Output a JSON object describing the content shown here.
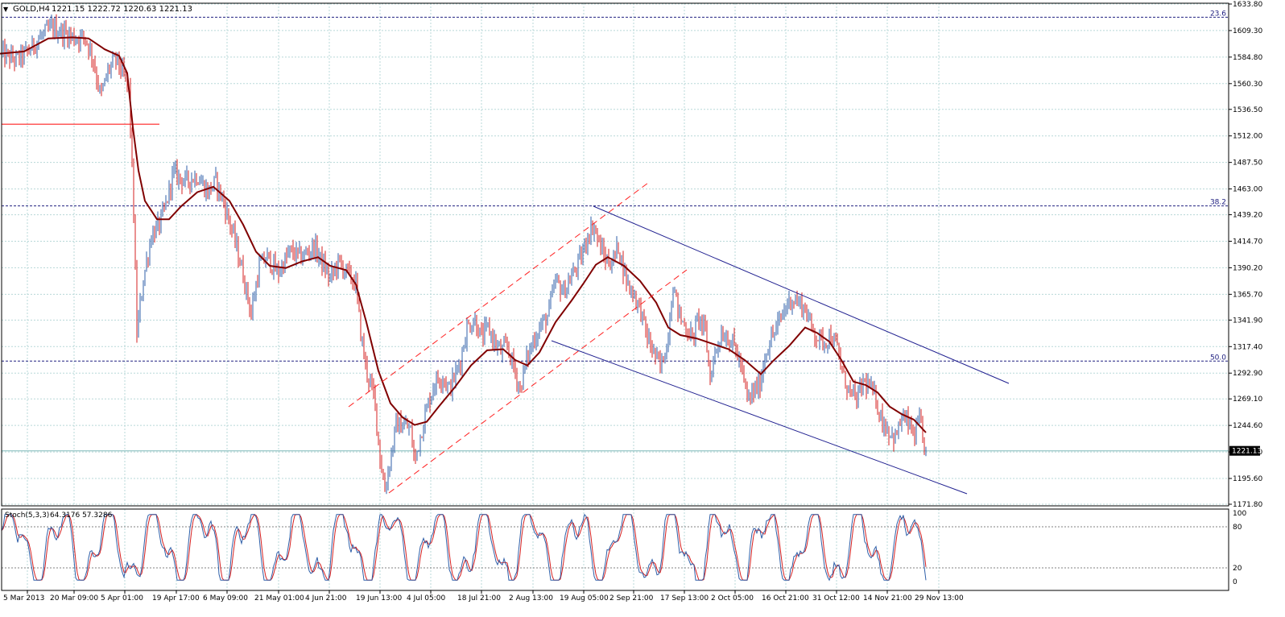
{
  "header": {
    "symbol_label": "GOLD,H4",
    "ohlc_text": "1221.15 1222.72 1220.63 1221.13"
  },
  "stoch_header": {
    "label": "Stoch(5,3,3)",
    "values_text": "64.3176 57.3286"
  },
  "chart_data": [
    {
      "type": "candlestick",
      "symbol": "GOLD",
      "timeframe": "H4",
      "last_price": 1221.13,
      "last_price_label": "1221.13",
      "ohlc": {
        "open": 1221.15,
        "high": 1222.72,
        "low": 1220.63,
        "close": 1221.13
      },
      "ylim": [
        1171.8,
        1633.8
      ],
      "y_ticks": [
        1633.8,
        1609.3,
        1584.8,
        1560.3,
        1536.5,
        1512.0,
        1487.5,
        1463.0,
        1439.2,
        1414.7,
        1390.2,
        1365.7,
        1341.9,
        1317.4,
        1292.9,
        1269.1,
        1244.6,
        1220.1,
        1195.6,
        1171.8
      ],
      "x_tick_labels": [
        "5 Mar 2013",
        "20 Mar 09:00",
        "5 Apr 01:00",
        "19 Apr 17:00",
        "6 May 09:00",
        "21 May 01:00",
        "4 Jun 21:00",
        "19 Jun 13:00",
        "4 Jul 05:00",
        "18 Jul 21:00",
        "2 Aug 13:00",
        "19 Aug 05:00",
        "2 Sep 21:00",
        "17 Sep 13:00",
        "2 Oct 05:00",
        "16 Oct 21:00",
        "31 Oct 12:00",
        "14 Nov 21:00",
        "29 Nov 13:00"
      ],
      "price_path": [
        [
          0,
          1588
        ],
        [
          20,
          1582
        ],
        [
          35,
          1590
        ],
        [
          50,
          1603
        ],
        [
          65,
          1612
        ],
        [
          80,
          1607
        ],
        [
          95,
          1602
        ],
        [
          105,
          1604
        ],
        [
          115,
          1585
        ],
        [
          125,
          1548
        ],
        [
          135,
          1574
        ],
        [
          145,
          1583
        ],
        [
          152,
          1570
        ],
        [
          160,
          1555
        ],
        [
          165,
          1465
        ],
        [
          170,
          1330
        ],
        [
          178,
          1380
        ],
        [
          188,
          1420
        ],
        [
          198,
          1430
        ],
        [
          205,
          1445
        ],
        [
          215,
          1478
        ],
        [
          230,
          1470
        ],
        [
          245,
          1475
        ],
        [
          258,
          1460
        ],
        [
          268,
          1470
        ],
        [
          278,
          1450
        ],
        [
          290,
          1420
        ],
        [
          300,
          1390
        ],
        [
          312,
          1348
        ],
        [
          322,
          1392
        ],
        [
          332,
          1400
        ],
        [
          345,
          1385
        ],
        [
          360,
          1405
        ],
        [
          375,
          1400
        ],
        [
          390,
          1410
        ],
        [
          400,
          1395
        ],
        [
          410,
          1380
        ],
        [
          420,
          1395
        ],
        [
          432,
          1385
        ],
        [
          442,
          1375
        ],
        [
          448,
          1330
        ],
        [
          455,
          1295
        ],
        [
          465,
          1270
        ],
        [
          472,
          1215
        ],
        [
          478,
          1185
        ],
        [
          484,
          1210
        ],
        [
          492,
          1245
        ],
        [
          502,
          1245
        ],
        [
          510,
          1240
        ],
        [
          515,
          1210
        ],
        [
          522,
          1235
        ],
        [
          530,
          1260
        ],
        [
          540,
          1285
        ],
        [
          550,
          1290
        ],
        [
          558,
          1278
        ],
        [
          565,
          1290
        ],
        [
          572,
          1305
        ],
        [
          580,
          1335
        ],
        [
          590,
          1342
        ],
        [
          598,
          1325
        ],
        [
          606,
          1335
        ],
        [
          614,
          1322
        ],
        [
          622,
          1312
        ],
        [
          630,
          1318
        ],
        [
          638,
          1298
        ],
        [
          646,
          1278
        ],
        [
          654,
          1305
        ],
        [
          662,
          1322
        ],
        [
          670,
          1335
        ],
        [
          680,
          1345
        ],
        [
          690,
          1378
        ],
        [
          700,
          1368
        ],
        [
          712,
          1385
        ],
        [
          722,
          1400
        ],
        [
          730,
          1420
        ],
        [
          737,
          1430
        ],
        [
          745,
          1410
        ],
        [
          752,
          1398
        ],
        [
          760,
          1395
        ],
        [
          768,
          1410
        ],
        [
          774,
          1390
        ],
        [
          780,
          1375
        ],
        [
          788,
          1365
        ],
        [
          796,
          1350
        ],
        [
          804,
          1325
        ],
        [
          812,
          1312
        ],
        [
          820,
          1298
        ],
        [
          828,
          1318
        ],
        [
          836,
          1375
        ],
        [
          844,
          1345
        ],
        [
          852,
          1335
        ],
        [
          860,
          1325
        ],
        [
          868,
          1345
        ],
        [
          876,
          1330
        ],
        [
          882,
          1288
        ],
        [
          888,
          1312
        ],
        [
          896,
          1330
        ],
        [
          904,
          1326
        ],
        [
          912,
          1318
        ],
        [
          920,
          1300
        ],
        [
          928,
          1268
        ],
        [
          936,
          1275
        ],
        [
          944,
          1284
        ],
        [
          952,
          1315
        ],
        [
          960,
          1328
        ],
        [
          968,
          1340
        ],
        [
          976,
          1355
        ],
        [
          984,
          1362
        ],
        [
          992,
          1358
        ],
        [
          1000,
          1352
        ],
        [
          1008,
          1335
        ],
        [
          1016,
          1325
        ],
        [
          1024,
          1322
        ],
        [
          1032,
          1328
        ],
        [
          1040,
          1315
        ],
        [
          1048,
          1288
        ],
        [
          1056,
          1275
        ],
        [
          1064,
          1268
        ],
        [
          1072,
          1285
        ],
        [
          1080,
          1280
        ],
        [
          1088,
          1268
        ],
        [
          1096,
          1248
        ],
        [
          1104,
          1240
        ],
        [
          1112,
          1232
        ],
        [
          1120,
          1252
        ],
        [
          1128,
          1246
        ],
        [
          1136,
          1234
        ],
        [
          1142,
          1250
        ],
        [
          1146,
          1230
        ],
        [
          1150,
          1221
        ]
      ],
      "moving_average_path": [
        [
          0,
          1588
        ],
        [
          30,
          1590
        ],
        [
          60,
          1602
        ],
        [
          90,
          1603
        ],
        [
          110,
          1602
        ],
        [
          130,
          1592
        ],
        [
          148,
          1586
        ],
        [
          158,
          1570
        ],
        [
          165,
          1520
        ],
        [
          172,
          1480
        ],
        [
          180,
          1452
        ],
        [
          195,
          1435
        ],
        [
          210,
          1435
        ],
        [
          225,
          1447
        ],
        [
          245,
          1460
        ],
        [
          265,
          1465
        ],
        [
          285,
          1452
        ],
        [
          302,
          1430
        ],
        [
          318,
          1405
        ],
        [
          335,
          1392
        ],
        [
          355,
          1390
        ],
        [
          375,
          1396
        ],
        [
          395,
          1400
        ],
        [
          410,
          1392
        ],
        [
          430,
          1388
        ],
        [
          442,
          1375
        ],
        [
          455,
          1340
        ],
        [
          470,
          1295
        ],
        [
          485,
          1265
        ],
        [
          500,
          1252
        ],
        [
          515,
          1245
        ],
        [
          530,
          1248
        ],
        [
          545,
          1262
        ],
        [
          565,
          1280
        ],
        [
          585,
          1300
        ],
        [
          605,
          1314
        ],
        [
          625,
          1315
        ],
        [
          640,
          1305
        ],
        [
          655,
          1300
        ],
        [
          670,
          1312
        ],
        [
          690,
          1340
        ],
        [
          710,
          1360
        ],
        [
          725,
          1376
        ],
        [
          740,
          1393
        ],
        [
          755,
          1400
        ],
        [
          775,
          1392
        ],
        [
          795,
          1378
        ],
        [
          815,
          1358
        ],
        [
          830,
          1335
        ],
        [
          845,
          1328
        ],
        [
          865,
          1325
        ],
        [
          885,
          1320
        ],
        [
          905,
          1315
        ],
        [
          925,
          1305
        ],
        [
          945,
          1292
        ],
        [
          960,
          1304
        ],
        [
          980,
          1318
        ],
        [
          1000,
          1335
        ],
        [
          1015,
          1330
        ],
        [
          1030,
          1322
        ],
        [
          1045,
          1305
        ],
        [
          1060,
          1285
        ],
        [
          1075,
          1282
        ],
        [
          1090,
          1275
        ],
        [
          1105,
          1262
        ],
        [
          1120,
          1255
        ],
        [
          1135,
          1250
        ],
        [
          1150,
          1238
        ]
      ],
      "fibonacci_levels": [
        {
          "label": "23.6",
          "price": 1621.6
        },
        {
          "label": "38.2",
          "price": 1447.3
        },
        {
          "label": "50.0",
          "price": 1304.0
        }
      ],
      "horizontal_line_price": 1522.8,
      "colors": {
        "bull_candle": "#2f5fa8",
        "bear_candle": "#d62020",
        "moving_average": "#800000",
        "fib_line": "#202080",
        "channel_up": "#ff2020",
        "channel_down": "#202090",
        "grid": "#b8d8d8",
        "last_price_line": "#7fb8b8"
      }
    },
    {
      "type": "line",
      "name": "Stoch(5,3,3)",
      "main_value": 64.3176,
      "signal_value": 57.3286,
      "ylim": [
        0,
        100
      ],
      "y_ticks": [
        100,
        80,
        20,
        0
      ],
      "levels": [
        80,
        20
      ],
      "colors": {
        "main": "#2f5fa8",
        "signal": "#d62020",
        "level": "#808080"
      }
    }
  ]
}
